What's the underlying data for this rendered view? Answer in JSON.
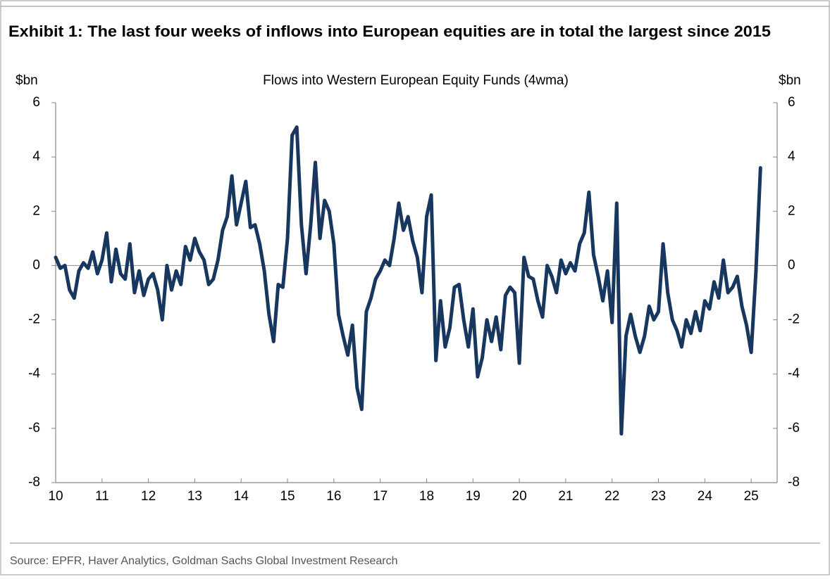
{
  "header": {
    "title": "Exhibit 1: The last four weeks of inflows into European equities are in total the largest since 2015"
  },
  "chart_data": {
    "type": "line",
    "title": "Flows into Western European Equity Funds (4wma)",
    "ylabel": "$bn",
    "y2label": "$bn",
    "x": [
      10.0,
      10.1,
      10.2,
      10.3,
      10.4,
      10.5,
      10.6,
      10.7,
      10.8,
      10.9,
      11.0,
      11.1,
      11.2,
      11.3,
      11.4,
      11.5,
      11.6,
      11.7,
      11.8,
      11.9,
      12.0,
      12.1,
      12.2,
      12.3,
      12.4,
      12.5,
      12.6,
      12.7,
      12.8,
      12.9,
      13.0,
      13.1,
      13.2,
      13.3,
      13.4,
      13.5,
      13.6,
      13.7,
      13.8,
      13.9,
      14.0,
      14.1,
      14.2,
      14.3,
      14.4,
      14.5,
      14.6,
      14.7,
      14.8,
      14.9,
      15.0,
      15.1,
      15.2,
      15.3,
      15.4,
      15.5,
      15.6,
      15.7,
      15.8,
      15.9,
      16.0,
      16.1,
      16.2,
      16.3,
      16.4,
      16.5,
      16.6,
      16.7,
      16.8,
      16.9,
      17.0,
      17.1,
      17.2,
      17.3,
      17.4,
      17.5,
      17.6,
      17.7,
      17.8,
      17.9,
      18.0,
      18.1,
      18.2,
      18.3,
      18.4,
      18.5,
      18.6,
      18.7,
      18.8,
      18.9,
      19.0,
      19.1,
      19.2,
      19.3,
      19.4,
      19.5,
      19.6,
      19.7,
      19.8,
      19.9,
      20.0,
      20.1,
      20.2,
      20.3,
      20.4,
      20.5,
      20.6,
      20.7,
      20.8,
      20.9,
      21.0,
      21.1,
      21.2,
      21.3,
      21.4,
      21.5,
      21.6,
      21.7,
      21.8,
      21.9,
      22.0,
      22.1,
      22.2,
      22.3,
      22.4,
      22.5,
      22.6,
      22.7,
      22.8,
      22.9,
      23.0,
      23.1,
      23.2,
      23.3,
      23.4,
      23.5,
      23.6,
      23.7,
      23.8,
      23.9,
      24.0,
      24.1,
      24.2,
      24.3,
      24.4,
      24.5,
      24.6,
      24.7,
      24.8,
      24.9,
      25.0,
      25.1,
      25.2
    ],
    "series": [
      {
        "name": "Flows",
        "color": "#17375e",
        "values": [
          0.3,
          -0.1,
          0.0,
          -0.9,
          -1.2,
          -0.2,
          0.1,
          -0.1,
          0.5,
          -0.3,
          0.2,
          1.2,
          -0.6,
          0.6,
          -0.3,
          -0.5,
          0.8,
          -1.0,
          -0.2,
          -1.1,
          -0.5,
          -0.3,
          -0.9,
          -2.0,
          0.0,
          -0.9,
          -0.2,
          -0.7,
          0.7,
          0.2,
          1.0,
          0.5,
          0.2,
          -0.7,
          -0.5,
          0.2,
          1.3,
          1.8,
          3.3,
          1.5,
          2.3,
          3.1,
          1.4,
          1.5,
          0.8,
          -0.2,
          -1.8,
          -2.8,
          -0.7,
          -0.8,
          1.0,
          4.8,
          5.1,
          1.5,
          -0.3,
          1.5,
          3.8,
          1.0,
          2.4,
          2.0,
          0.8,
          -1.8,
          -2.6,
          -3.3,
          -2.2,
          -4.5,
          -5.3,
          -1.7,
          -1.2,
          -0.5,
          -0.2,
          0.2,
          0.0,
          1.0,
          2.3,
          1.3,
          1.8,
          0.9,
          0.3,
          -1.0,
          1.8,
          2.6,
          -3.5,
          -1.3,
          -3.0,
          -2.3,
          -0.8,
          -0.7,
          -2.0,
          -3.0,
          -1.6,
          -4.1,
          -3.4,
          -2.0,
          -2.8,
          -1.9,
          -3.1,
          -1.1,
          -0.8,
          -1.0,
          -3.6,
          0.3,
          -0.4,
          -0.5,
          -1.3,
          -1.9,
          0.0,
          -0.4,
          -1.0,
          0.2,
          -0.3,
          0.1,
          -0.2,
          0.8,
          1.2,
          2.7,
          0.4,
          -0.4,
          -1.3,
          -0.2,
          -2.1,
          2.3,
          -6.2,
          -2.6,
          -1.8,
          -2.6,
          -3.2,
          -2.6,
          -1.5,
          -2.0,
          -1.7,
          0.8,
          -1.0,
          -2.0,
          -2.4,
          -3.0,
          -2.0,
          -2.5,
          -1.7,
          -2.4,
          -1.3,
          -1.6,
          -0.6,
          -1.2,
          0.2,
          -1.0,
          -0.8,
          -0.4,
          -1.5,
          -2.2,
          -3.2,
          -0.3,
          3.6
        ]
      }
    ],
    "xlim": [
      10,
      25.56
    ],
    "xticks": [
      10,
      11,
      12,
      13,
      14,
      15,
      16,
      17,
      18,
      19,
      20,
      21,
      22,
      23,
      24,
      25
    ],
    "ylim": [
      -8,
      6
    ],
    "yticks": [
      -8,
      -6,
      -4,
      -2,
      0,
      2,
      4,
      6
    ],
    "y2lim": [
      -8,
      6
    ],
    "y2ticks": [
      -8,
      -6,
      -4,
      -2,
      0,
      2,
      4,
      6
    ],
    "zero_line": true
  },
  "footer": {
    "source": "Source: EPFR, Haver Analytics, Goldman Sachs Global Investment Research"
  }
}
